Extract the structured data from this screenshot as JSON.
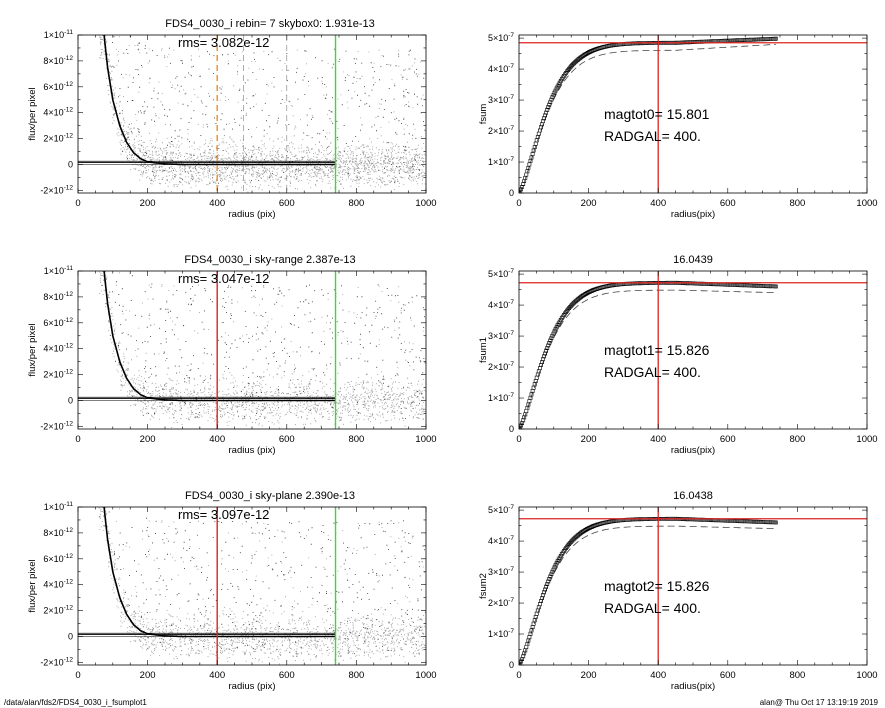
{
  "footer": {
    "path": "/data/alan/fds2/FDS4_0030_i_fsumplot1",
    "stamp": "alan@  Thu Oct 17 13:19:19 2019"
  },
  "colors": {
    "orange_line": "#ee8e22",
    "red_line": "#dd2222",
    "green_line": "#33dd33",
    "scatter_grey": "#9a9a9a",
    "profile": "#000000"
  },
  "chart_data": [
    {
      "type": "scatter",
      "title": "FDS4_0030_i rebin= 7    skybox0:  1.931e-13",
      "annotation": "rms= 3.082e-12",
      "xlabel": "radius (pix)",
      "ylabel": "flux/per pixel",
      "xlim": [
        0,
        1000
      ],
      "ylim": [
        -2.2e-12,
        1e-11
      ],
      "xticks": [
        "0",
        "200",
        "400",
        "600",
        "800",
        "1000"
      ],
      "yticks": [
        {
          "v": -2e-12,
          "m": "-2",
          "e": "-12"
        },
        {
          "v": 0,
          "m": "0",
          "e": ""
        },
        {
          "v": 2e-12,
          "m": "2",
          "e": "-12"
        },
        {
          "v": 4e-12,
          "m": "4",
          "e": "-12"
        },
        {
          "v": 6e-12,
          "m": "6",
          "e": "-12"
        },
        {
          "v": 8e-12,
          "m": "8",
          "e": "-12"
        },
        {
          "v": 1e-11,
          "m": "1",
          "e": "-11"
        }
      ],
      "vlines": [
        {
          "x": 400,
          "color": "orange",
          "style": "dashed"
        },
        {
          "x": 475,
          "color": "grey",
          "style": "dashed"
        },
        {
          "x": 600,
          "color": "grey",
          "style": "dashed"
        },
        {
          "x": 740,
          "color": "green",
          "style": "solid"
        }
      ],
      "hlines": [
        1.5e-13,
        2.5e-13
      ],
      "profile": {
        "x": [
          75,
          85,
          100,
          120,
          140,
          160,
          180,
          200,
          250,
          300,
          400,
          500,
          600,
          740
        ],
        "y": [
          1e-11,
          7.5e-12,
          5e-12,
          3e-12,
          1.7e-12,
          9e-13,
          4.5e-13,
          2e-13,
          5e-14,
          0,
          0,
          0,
          0,
          0
        ]
      }
    },
    {
      "type": "line",
      "title": "",
      "annotation": [
        "magtot0=  15.801",
        "RADGAL=    400."
      ],
      "xlabel": "radius(pix)",
      "ylabel": "fsum",
      "xlim": [
        0,
        1000
      ],
      "ylim": [
        0,
        5.1e-07
      ],
      "xticks": [
        "0",
        "200",
        "400",
        "600",
        "800",
        "1000"
      ],
      "yticks": [
        {
          "v": 0,
          "m": "0",
          "e": ""
        },
        {
          "v": 1e-07,
          "m": "1",
          "e": "-7"
        },
        {
          "v": 2e-07,
          "m": "2",
          "e": "-7"
        },
        {
          "v": 3e-07,
          "m": "3",
          "e": "-7"
        },
        {
          "v": 4e-07,
          "m": "4",
          "e": "-7"
        },
        {
          "v": 5e-07,
          "m": "5",
          "e": "-7"
        }
      ],
      "vline": 400,
      "hline": 4.85e-07,
      "fsum_end": 4.98e-07,
      "dashed_end": 4.8e-07
    },
    {
      "type": "scatter",
      "title": "FDS4_0030_i sky-range  2.387e-13",
      "annotation": "rms= 3.047e-12",
      "xlabel": "radius (pix)",
      "ylabel": "flux/per pixel",
      "xlim": [
        0,
        1000
      ],
      "ylim": [
        -2.2e-12,
        1e-11
      ],
      "xticks": [
        "0",
        "200",
        "400",
        "600",
        "800",
        "1000"
      ],
      "yticks": [
        {
          "v": -2e-12,
          "m": "-2",
          "e": "-12"
        },
        {
          "v": 0,
          "m": "0",
          "e": ""
        },
        {
          "v": 2e-12,
          "m": "2",
          "e": "-12"
        },
        {
          "v": 4e-12,
          "m": "4",
          "e": "-12"
        },
        {
          "v": 6e-12,
          "m": "6",
          "e": "-12"
        },
        {
          "v": 8e-12,
          "m": "8",
          "e": "-12"
        },
        {
          "v": 1e-11,
          "m": "1",
          "e": "-11"
        }
      ],
      "vlines": [
        {
          "x": 400,
          "color": "red",
          "style": "solid"
        },
        {
          "x": 740,
          "color": "green",
          "style": "solid"
        }
      ],
      "hlines": [
        1.5e-13,
        2.5e-13
      ],
      "profile": {
        "x": [
          75,
          85,
          100,
          120,
          140,
          160,
          180,
          200,
          250,
          300,
          400,
          500,
          600,
          740
        ],
        "y": [
          1e-11,
          7.5e-12,
          5e-12,
          3e-12,
          1.7e-12,
          9e-13,
          4.5e-13,
          2e-13,
          5e-14,
          0,
          0,
          0,
          0,
          0
        ]
      }
    },
    {
      "type": "line",
      "title": "16.0439",
      "annotation": [
        "magtot1=  15.826",
        "RADGAL=    400."
      ],
      "xlabel": "radius(pix)",
      "ylabel": "fsum1",
      "xlim": [
        0,
        1000
      ],
      "ylim": [
        0,
        5.1e-07
      ],
      "xticks": [
        "0",
        "200",
        "400",
        "600",
        "800",
        "1000"
      ],
      "yticks": [
        {
          "v": 0,
          "m": "0",
          "e": ""
        },
        {
          "v": 1e-07,
          "m": "1",
          "e": "-7"
        },
        {
          "v": 2e-07,
          "m": "2",
          "e": "-7"
        },
        {
          "v": 3e-07,
          "m": "3",
          "e": "-7"
        },
        {
          "v": 4e-07,
          "m": "4",
          "e": "-7"
        },
        {
          "v": 5e-07,
          "m": "5",
          "e": "-7"
        }
      ],
      "vline": 400,
      "hline": 4.72e-07,
      "fsum_end": 4.6e-07,
      "dashed_end": 4.4e-07
    },
    {
      "type": "scatter",
      "title": "FDS4_0030_i sky-plane  2.390e-13",
      "annotation": "rms= 3.097e-12",
      "xlabel": "radius (pix)",
      "ylabel": "flux/per pixel",
      "xlim": [
        0,
        1000
      ],
      "ylim": [
        -2.2e-12,
        1e-11
      ],
      "xticks": [
        "0",
        "200",
        "400",
        "600",
        "800",
        "1000"
      ],
      "yticks": [
        {
          "v": -2e-12,
          "m": "-2",
          "e": "-12"
        },
        {
          "v": 0,
          "m": "0",
          "e": ""
        },
        {
          "v": 2e-12,
          "m": "2",
          "e": "-12"
        },
        {
          "v": 4e-12,
          "m": "4",
          "e": "-12"
        },
        {
          "v": 6e-12,
          "m": "6",
          "e": "-12"
        },
        {
          "v": 8e-12,
          "m": "8",
          "e": "-12"
        },
        {
          "v": 1e-11,
          "m": "1",
          "e": "-11"
        }
      ],
      "vlines": [
        {
          "x": 400,
          "color": "red",
          "style": "solid"
        },
        {
          "x": 740,
          "color": "green",
          "style": "solid"
        }
      ],
      "hlines": [
        1.5e-13,
        2.5e-13
      ],
      "profile": {
        "x": [
          75,
          85,
          100,
          120,
          140,
          160,
          180,
          200,
          250,
          300,
          400,
          500,
          600,
          740
        ],
        "y": [
          1e-11,
          7.5e-12,
          5e-12,
          3e-12,
          1.7e-12,
          9e-13,
          4.5e-13,
          2e-13,
          5e-14,
          0,
          0,
          0,
          0,
          0
        ]
      }
    },
    {
      "type": "line",
      "title": "16.0438",
      "annotation": [
        "magtot2=  15.826",
        "RADGAL=    400."
      ],
      "xlabel": "radius(pix)",
      "ylabel": "fsum2",
      "xlim": [
        0,
        1000
      ],
      "ylim": [
        0,
        5.1e-07
      ],
      "xticks": [
        "0",
        "200",
        "400",
        "600",
        "800",
        "1000"
      ],
      "yticks": [
        {
          "v": 0,
          "m": "0",
          "e": ""
        },
        {
          "v": 1e-07,
          "m": "1",
          "e": "-7"
        },
        {
          "v": 2e-07,
          "m": "2",
          "e": "-7"
        },
        {
          "v": 3e-07,
          "m": "3",
          "e": "-7"
        },
        {
          "v": 4e-07,
          "m": "4",
          "e": "-7"
        },
        {
          "v": 5e-07,
          "m": "5",
          "e": "-7"
        }
      ],
      "vline": 400,
      "hline": 4.72e-07,
      "fsum_end": 4.6e-07,
      "dashed_end": 4.4e-07
    }
  ]
}
